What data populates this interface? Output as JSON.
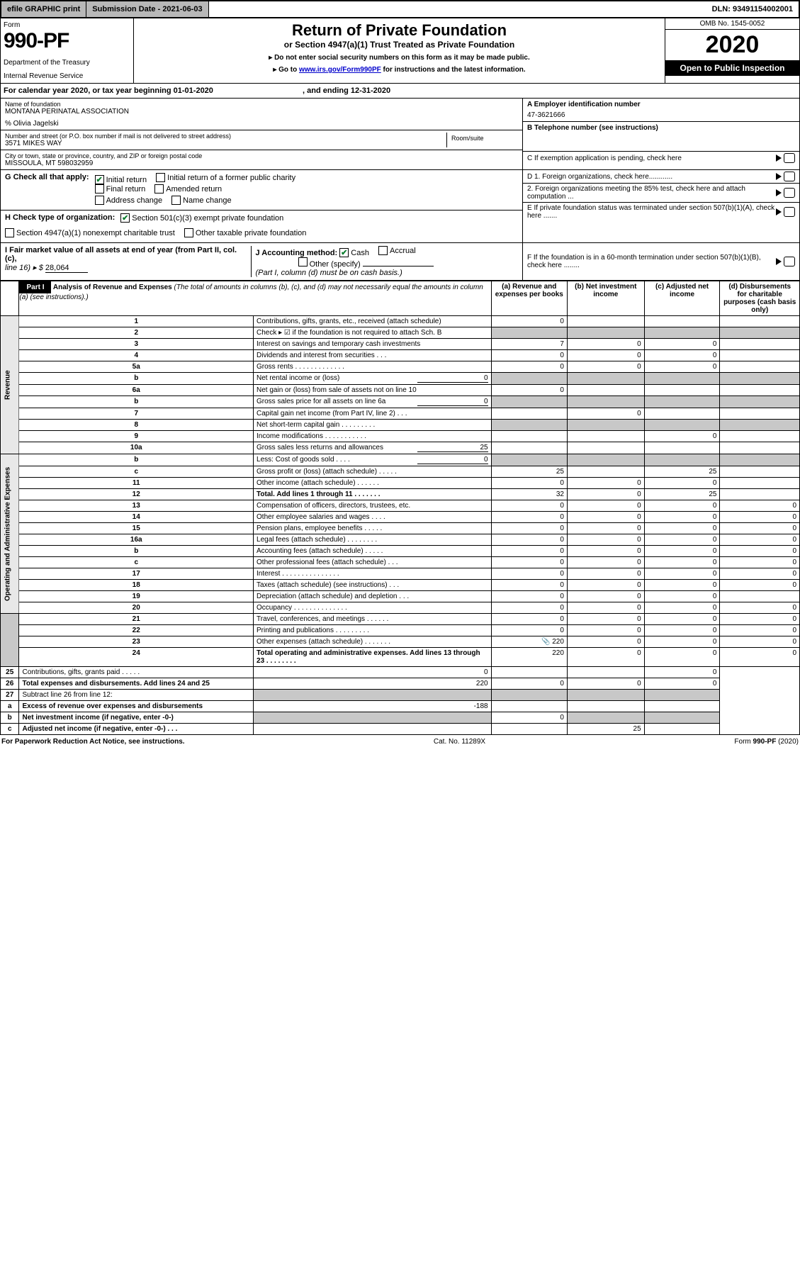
{
  "topbar": {
    "efile": "efile GRAPHIC print",
    "subdate_label": "Submission Date - 2021-06-03",
    "dln": "DLN: 93491154002001"
  },
  "header": {
    "form_word": "Form",
    "form_number": "990-PF",
    "dept": "Department of the Treasury",
    "irs": "Internal Revenue Service",
    "title": "Return of Private Foundation",
    "subtitle": "or Section 4947(a)(1) Trust Treated as Private Foundation",
    "instr1": "▸ Do not enter social security numbers on this form as it may be made public.",
    "instr2_pre": "▸ Go to ",
    "instr2_link": "www.irs.gov/Form990PF",
    "instr2_post": " for instructions and the latest information.",
    "omb": "OMB No. 1545-0052",
    "year": "2020",
    "open": "Open to Public Inspection"
  },
  "calendar": {
    "text": "For calendar year 2020, or tax year beginning 01-01-2020",
    "end": ", and ending 12-31-2020"
  },
  "ident": {
    "name_lbl": "Name of foundation",
    "name": "MONTANA PERINATAL ASSOCIATION",
    "care": "% Olivia Jagelski",
    "addr_lbl": "Number and street (or P.O. box number if mail is not delivered to street address)",
    "addr": "3571 MIKES WAY",
    "room_lbl": "Room/suite",
    "city_lbl": "City or town, state or province, country, and ZIP or foreign postal code",
    "city": "MISSOULA, MT 598032959",
    "a_lbl": "A Employer identification number",
    "ein": "47-3621666",
    "b_lbl": "B Telephone number (see instructions)",
    "c_lbl": "C If exemption application is pending, check here",
    "d1": "D 1. Foreign organizations, check here............",
    "d2": "2. Foreign organizations meeting the 85% test, check here and attach computation ...",
    "e_lbl": "E  If private foundation status was terminated under section 507(b)(1)(A), check here .......",
    "f_lbl": "F  If the foundation is in a 60-month termination under section 507(b)(1)(B), check here ........"
  },
  "g": {
    "lead": "G Check all that apply:",
    "initial": "Initial return",
    "initial_former": "Initial return of a former public charity",
    "final": "Final return",
    "amended": "Amended return",
    "addrchg": "Address change",
    "namechg": "Name change"
  },
  "h": {
    "lead": "H Check type of organization:",
    "s501": "Section 501(c)(3) exempt private foundation",
    "s4947": "Section 4947(a)(1) nonexempt charitable trust",
    "other": "Other taxable private foundation"
  },
  "i": {
    "lead": "I Fair market value of all assets at end of year (from Part II, col. (c),",
    "line": "line 16) ▸ $",
    "val": "28,064"
  },
  "j": {
    "lead": "J Accounting method:",
    "cash": "Cash",
    "accrual": "Accrual",
    "other": "Other (specify)",
    "note": "(Part I, column (d) must be on cash basis.)"
  },
  "part1": {
    "label": "Part I",
    "title": "Analysis of Revenue and Expenses",
    "title_note": "(The total of amounts in columns (b), (c), and (d) may not necessarily equal the amounts in column (a) (see instructions).)",
    "cols": {
      "a": "(a)   Revenue and expenses per books",
      "b": "(b)   Net investment income",
      "c": "(c)   Adjusted net income",
      "d": "(d)   Disbursements for charitable purposes (cash basis only)"
    },
    "rev_label": "Revenue",
    "exp_label": "Operating and Administrative Expenses"
  },
  "rows": [
    {
      "n": "1",
      "d": "Contributions, gifts, grants, etc., received (attach schedule)",
      "a": "0"
    },
    {
      "n": "2",
      "d": "Check ▸ ☑ if the foundation is not required to attach Sch. B",
      "dots": ". . . . . . . . . . . . . . . . . . ."
    },
    {
      "n": "3",
      "d": "Interest on savings and temporary cash investments",
      "a": "7",
      "b": "0",
      "c": "0"
    },
    {
      "n": "4",
      "d": "Dividends and interest from securities   .  .  .",
      "a": "0",
      "b": "0",
      "c": "0"
    },
    {
      "n": "5a",
      "d": "Gross rents    . . . . . . . . . . . . .",
      "a": "0",
      "b": "0",
      "c": "0"
    },
    {
      "n": "b",
      "d": "Net rental income or (loss)",
      "inline": "0"
    },
    {
      "n": "6a",
      "d": "Net gain or (loss) from sale of assets not on line 10",
      "a": "0"
    },
    {
      "n": "b",
      "d": "Gross sales price for all assets on line 6a",
      "inline": "0"
    },
    {
      "n": "7",
      "d": "Capital gain net income (from Part IV, line 2)  .  .  .",
      "b": "0"
    },
    {
      "n": "8",
      "d": "Net short-term capital gain  . . . . . . . . ."
    },
    {
      "n": "9",
      "d": "Income modifications  . . . . . . . . . . .",
      "c": "0"
    },
    {
      "n": "10a",
      "d": "Gross sales less returns and allowances",
      "inline": "25"
    },
    {
      "n": "b",
      "d": "Less: Cost of goods sold    .  .  .  .",
      "inline": "0"
    },
    {
      "n": "c",
      "d": "Gross profit or (loss) (attach schedule)  .  .  .  .  .",
      "a": "25",
      "c": "25"
    },
    {
      "n": "11",
      "d": "Other income (attach schedule)   .  .  .  .  .  .",
      "a": "0",
      "b": "0",
      "c": "0"
    },
    {
      "n": "12",
      "d": "Total. Add lines 1 through 11   .  .  .  .  .  .  .",
      "bold": true,
      "a": "32",
      "b": "0",
      "c": "25"
    },
    {
      "n": "13",
      "d": "Compensation of officers, directors, trustees, etc.",
      "a": "0",
      "b": "0",
      "c": "0",
      "dd": "0"
    },
    {
      "n": "14",
      "d": "Other employee salaries and wages  .  .  .  .",
      "a": "0",
      "b": "0",
      "c": "0",
      "dd": "0"
    },
    {
      "n": "15",
      "d": "Pension plans, employee benefits  .  .  .  .  .",
      "a": "0",
      "b": "0",
      "c": "0",
      "dd": "0"
    },
    {
      "n": "16a",
      "d": "Legal fees (attach schedule)  . . . . . . . .",
      "a": "0",
      "b": "0",
      "c": "0",
      "dd": "0"
    },
    {
      "n": "b",
      "d": "Accounting fees (attach schedule)  .  .  .  .  .",
      "a": "0",
      "b": "0",
      "c": "0",
      "dd": "0"
    },
    {
      "n": "c",
      "d": "Other professional fees (attach schedule)   .  .  .",
      "a": "0",
      "b": "0",
      "c": "0",
      "dd": "0"
    },
    {
      "n": "17",
      "d": "Interest  . . . . . . . . . . . . . . .",
      "a": "0",
      "b": "0",
      "c": "0",
      "dd": "0"
    },
    {
      "n": "18",
      "d": "Taxes (attach schedule) (see instructions)   .  .  .",
      "a": "0",
      "b": "0",
      "c": "0",
      "dd": "0"
    },
    {
      "n": "19",
      "d": "Depreciation (attach schedule) and depletion   .  .  .",
      "a": "0",
      "b": "0",
      "c": "0"
    },
    {
      "n": "20",
      "d": "Occupancy  . . . . . . . . . . . . . .",
      "a": "0",
      "b": "0",
      "c": "0",
      "dd": "0"
    },
    {
      "n": "21",
      "d": "Travel, conferences, and meetings  . . . . . .",
      "a": "0",
      "b": "0",
      "c": "0",
      "dd": "0"
    },
    {
      "n": "22",
      "d": "Printing and publications  . . . . . . . . .",
      "a": "0",
      "b": "0",
      "c": "0",
      "dd": "0"
    },
    {
      "n": "23",
      "d": "Other expenses (attach schedule)  . . . . . . .",
      "a": "220",
      "b": "0",
      "c": "0",
      "dd": "0",
      "icon": true
    },
    {
      "n": "24",
      "d": "Total operating and administrative expenses. Add lines 13 through 23   .  .  .  .  .  .  .  .",
      "bold": true,
      "a": "220",
      "b": "0",
      "c": "0",
      "dd": "0"
    },
    {
      "n": "25",
      "d": "Contributions, gifts, grants paid    .  .  .  .  .",
      "a": "0",
      "dd": "0"
    },
    {
      "n": "26",
      "d": "Total expenses and disbursements. Add lines 24 and 25",
      "bold": true,
      "a": "220",
      "b": "0",
      "c": "0",
      "dd": "0"
    },
    {
      "n": "27",
      "d": "Subtract line 26 from line 12:"
    },
    {
      "n": "a",
      "d": "Excess of revenue over expenses and disbursements",
      "bold": true,
      "a": "-188"
    },
    {
      "n": "b",
      "d": "Net investment income (if negative, enter -0-)",
      "bold": true,
      "b": "0"
    },
    {
      "n": "c",
      "d": "Adjusted net income (if negative, enter -0-)   .  .  .",
      "bold": true,
      "c": "25"
    }
  ],
  "footer": {
    "left": "For Paperwork Reduction Act Notice, see instructions.",
    "mid": "Cat. No. 11289X",
    "right": "Form 990-PF (2020)"
  }
}
